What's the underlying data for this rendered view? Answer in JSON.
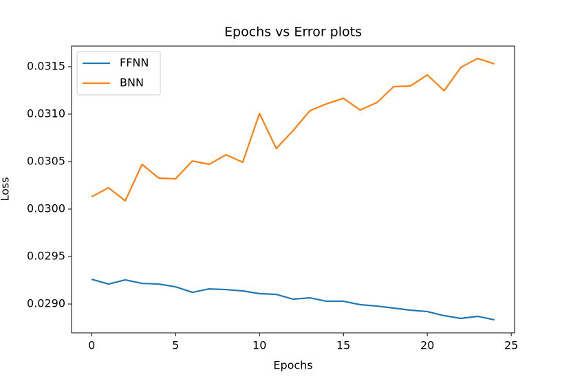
{
  "chart_data": {
    "type": "line",
    "title": "Epochs vs Error plots",
    "x_label": "Epochs",
    "y_label": "Loss",
    "x": [
      0,
      1,
      2,
      3,
      4,
      5,
      6,
      7,
      8,
      9,
      10,
      11,
      12,
      13,
      14,
      15,
      16,
      17,
      18,
      19,
      20,
      21,
      22,
      23,
      24
    ],
    "series": [
      {
        "name": "FFNN",
        "color": "#1f77b4",
        "values": [
          0.029261,
          0.02921,
          0.029254,
          0.029217,
          0.02921,
          0.029181,
          0.029123,
          0.029159,
          0.029152,
          0.029138,
          0.029109,
          0.029101,
          0.029051,
          0.029065,
          0.029029,
          0.029029,
          0.028993,
          0.028978,
          0.028957,
          0.028935,
          0.02892,
          0.028877,
          0.028848,
          0.02887,
          0.028833
        ]
      },
      {
        "name": "BNN",
        "color": "#ff7f0e",
        "values": [
          0.03013,
          0.030225,
          0.030087,
          0.030471,
          0.030326,
          0.030319,
          0.030507,
          0.030471,
          0.030572,
          0.030493,
          0.031007,
          0.030638,
          0.030826,
          0.031036,
          0.031109,
          0.031167,
          0.031043,
          0.031123,
          0.03129,
          0.031297,
          0.031413,
          0.031246,
          0.031493,
          0.031587,
          0.031529
        ]
      }
    ],
    "xlim": [
      -1.2,
      25.2
    ],
    "xticks": [
      0,
      5,
      10,
      15,
      20,
      25
    ],
    "ylim": [
      0.028696,
      0.031717
    ],
    "yticks": [
      {
        "value": 0.029,
        "label": "0.0290"
      },
      {
        "value": 0.0295,
        "label": "0.0295"
      },
      {
        "value": 0.03,
        "label": "0.0300"
      },
      {
        "value": 0.0305,
        "label": "0.0305"
      },
      {
        "value": 0.031,
        "label": "0.0310"
      },
      {
        "value": 0.0315,
        "label": "0.0315"
      }
    ],
    "legend": "upper left"
  }
}
